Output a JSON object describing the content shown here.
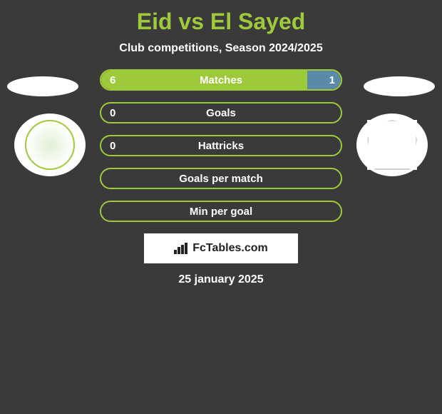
{
  "title": "Eid vs El Sayed",
  "subtitle": "Club competitions, Season 2024/2025",
  "date": "25 january 2025",
  "branding": "FcTables.com",
  "colors": {
    "accent": "#9ec93b",
    "right_bar": "#5a8aa8",
    "background": "#3a3a3a",
    "text": "#ffffff"
  },
  "left_player": {
    "badge_hint": ""
  },
  "right_player": {
    "badge_hint": ""
  },
  "stats": [
    {
      "label": "Matches",
      "left_value": "6",
      "right_value": "1",
      "left_pct": 86,
      "right_pct": 14
    },
    {
      "label": "Goals",
      "left_value": "0",
      "right_value": "",
      "left_pct": 0,
      "right_pct": 0
    },
    {
      "label": "Hattricks",
      "left_value": "0",
      "right_value": "",
      "left_pct": 0,
      "right_pct": 0
    },
    {
      "label": "Goals per match",
      "left_value": "",
      "right_value": "",
      "left_pct": 0,
      "right_pct": 0
    },
    {
      "label": "Min per goal",
      "left_value": "",
      "right_value": "",
      "left_pct": 0,
      "right_pct": 0
    }
  ]
}
